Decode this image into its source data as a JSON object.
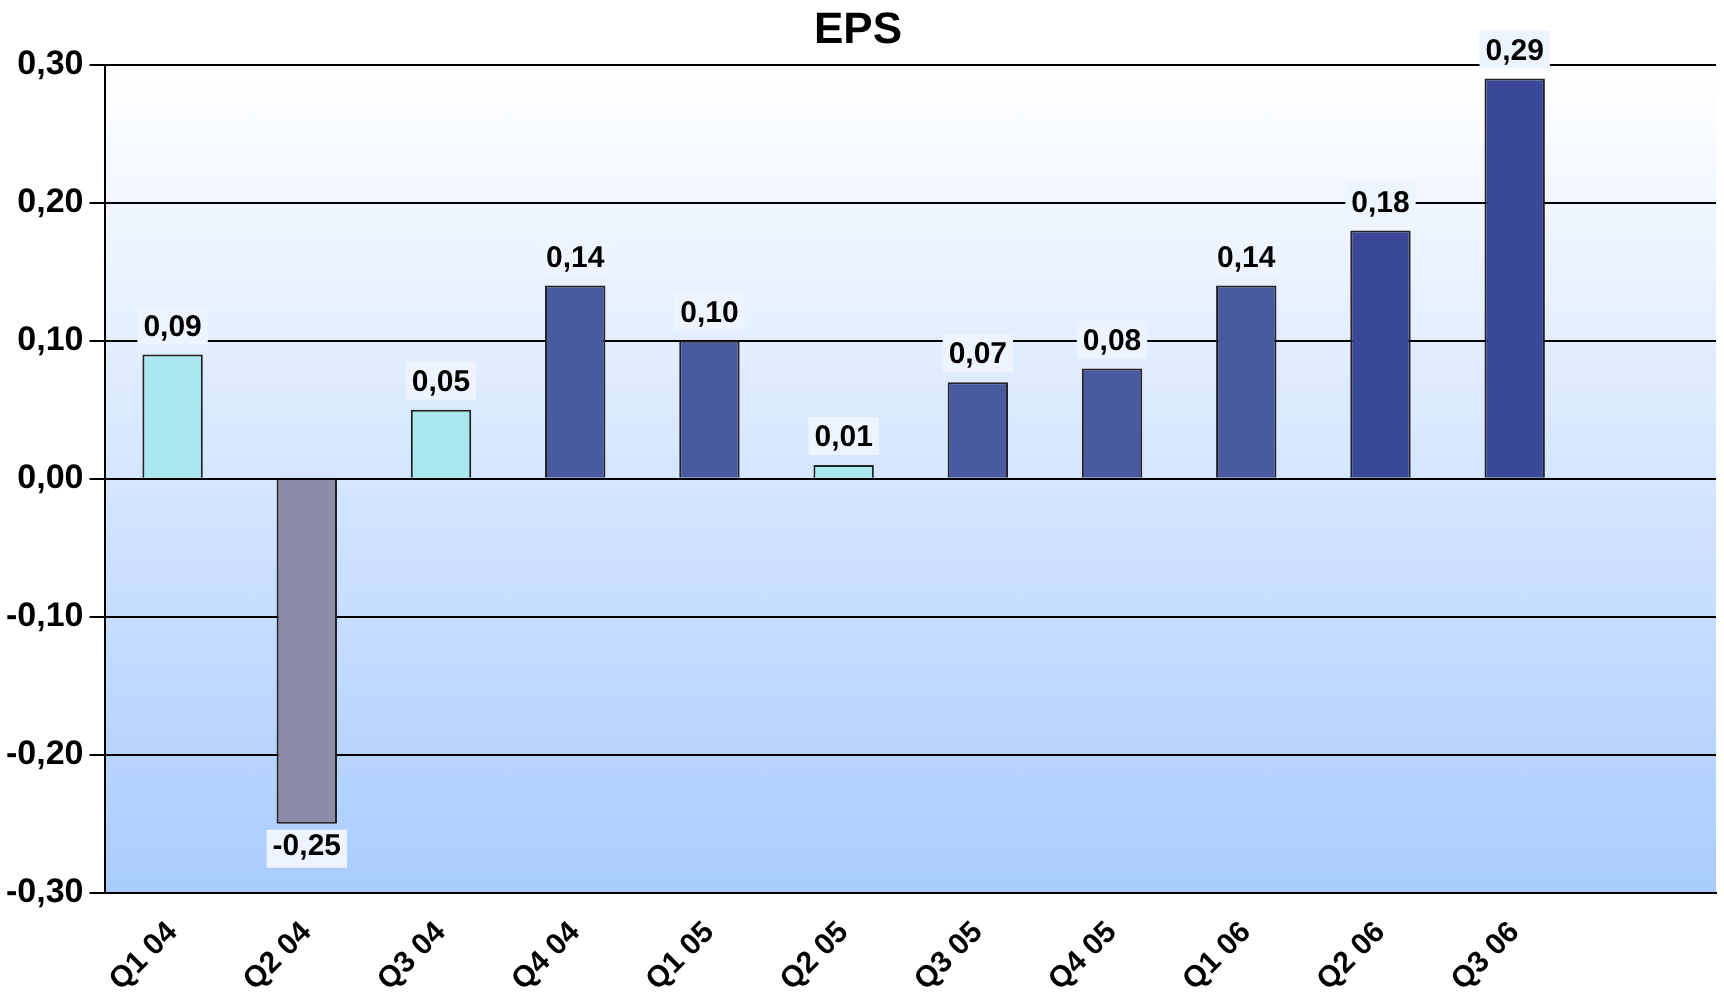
{
  "chart_data": {
    "type": "bar",
    "title": "EPS",
    "categories": [
      "Q1 04",
      "Q2 04",
      "Q3 04",
      "Q4 04",
      "Q1 05",
      "Q2 05",
      "Q3 05",
      "Q4 05",
      "Q1 06",
      "Q2 06",
      "Q3 06",
      null
    ],
    "values": [
      0.09,
      -0.25,
      0.05,
      0.14,
      0.1,
      0.01,
      0.07,
      0.08,
      0.14,
      0.18,
      0.29,
      null
    ],
    "value_labels": [
      "0,09",
      "-0,25",
      "0,05",
      "0,14",
      "0,10",
      "0,01",
      "0,07",
      "0,08",
      "0,14",
      "0,18",
      "0,29",
      null
    ],
    "colors": [
      "#a8e8ee",
      "#8c8ca8",
      "#a8e8ee",
      "#4a5aa0",
      "#4a5aa0",
      "#a8e8ee",
      "#4a5aa0",
      "#4a5aa0",
      "#4a5aa0",
      "#3a4898",
      "#3a4898",
      "#3a4898"
    ],
    "ylim": [
      -0.3,
      0.3
    ],
    "yticks": [
      {
        "value": -0.3,
        "label": "-0,30"
      },
      {
        "value": -0.2,
        "label": "-0,20"
      },
      {
        "value": -0.1,
        "label": "-0,10"
      },
      {
        "value": 0,
        "label": "0,00"
      },
      {
        "value": 0.1,
        "label": "0,10"
      },
      {
        "value": 0.2,
        "label": "0,20"
      },
      {
        "value": 0.3,
        "label": "0,30"
      }
    ],
    "grid": "y",
    "legend": false
  }
}
